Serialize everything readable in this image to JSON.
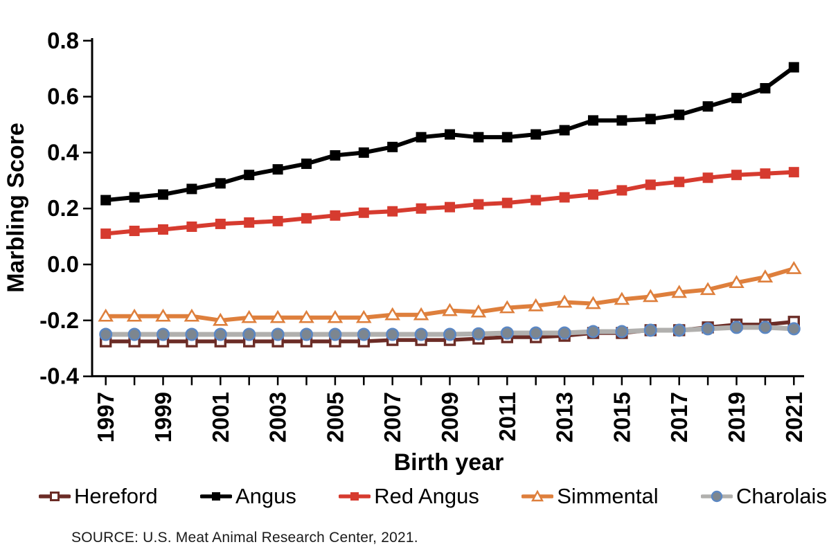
{
  "figure": {
    "y_axis_label": "Marbling Score",
    "x_axis_label": "Birth year",
    "source": "SOURCE: U.S. Meat Animal Research Center, 2021."
  },
  "chart_data": {
    "type": "line",
    "title": "",
    "xlabel": "Birth year",
    "ylabel": "Marbling Score",
    "x": [
      1997,
      1998,
      1999,
      2000,
      2001,
      2002,
      2003,
      2004,
      2005,
      2006,
      2007,
      2008,
      2009,
      2010,
      2011,
      2012,
      2013,
      2014,
      2015,
      2016,
      2017,
      2018,
      2019,
      2020,
      2021
    ],
    "x_tick_labels": [
      "1997",
      "1999",
      "2001",
      "2003",
      "2005",
      "2007",
      "2009",
      "2011",
      "2013",
      "2015",
      "2017",
      "2019",
      "2021"
    ],
    "y_tick_labels": [
      "0.8",
      "0.6",
      "0.4",
      "0.2",
      "0.0",
      "-0.2",
      "-0.4"
    ],
    "ylim": [
      -0.4,
      0.8
    ],
    "grid": false,
    "legend_position": "bottom",
    "series": [
      {
        "name": "Hereford",
        "color": "#6b2c26",
        "marker": "open-square",
        "line_width": 5.5,
        "values": [
          -0.275,
          -0.275,
          -0.275,
          -0.275,
          -0.275,
          -0.275,
          -0.275,
          -0.275,
          -0.275,
          -0.275,
          -0.27,
          -0.27,
          -0.27,
          -0.265,
          -0.26,
          -0.26,
          -0.255,
          -0.245,
          -0.245,
          -0.235,
          -0.235,
          -0.225,
          -0.215,
          -0.215,
          -0.205
        ]
      },
      {
        "name": "Angus",
        "color": "#000000",
        "marker": "filled-square",
        "line_width": 6,
        "values": [
          0.23,
          0.24,
          0.25,
          0.27,
          0.29,
          0.32,
          0.34,
          0.36,
          0.39,
          0.4,
          0.42,
          0.455,
          0.465,
          0.455,
          0.455,
          0.465,
          0.48,
          0.515,
          0.515,
          0.52,
          0.535,
          0.565,
          0.595,
          0.63,
          0.705
        ]
      },
      {
        "name": "Red Angus",
        "color": "#d63b2f",
        "marker": "filled-square",
        "line_width": 6,
        "values": [
          0.11,
          0.12,
          0.125,
          0.135,
          0.145,
          0.15,
          0.155,
          0.165,
          0.175,
          0.185,
          0.19,
          0.2,
          0.205,
          0.215,
          0.22,
          0.23,
          0.24,
          0.25,
          0.265,
          0.285,
          0.295,
          0.31,
          0.32,
          0.325,
          0.33
        ]
      },
      {
        "name": "Simmental",
        "color": "#de7f3c",
        "marker": "open-triangle",
        "line_width": 6,
        "values": [
          -0.185,
          -0.185,
          -0.185,
          -0.185,
          -0.2,
          -0.19,
          -0.19,
          -0.19,
          -0.19,
          -0.19,
          -0.18,
          -0.18,
          -0.165,
          -0.17,
          -0.155,
          -0.148,
          -0.135,
          -0.14,
          -0.125,
          -0.115,
          -0.1,
          -0.09,
          -0.065,
          -0.045,
          -0.015
        ]
      },
      {
        "name": "Charolais",
        "color": "#b1b0ae",
        "marker": "filled-circle",
        "marker_fill": "#7d868f",
        "marker_edge": "#5b87c3",
        "line_width": 7,
        "values": [
          -0.25,
          -0.25,
          -0.25,
          -0.25,
          -0.25,
          -0.25,
          -0.25,
          -0.25,
          -0.25,
          -0.25,
          -0.25,
          -0.25,
          -0.25,
          -0.248,
          -0.245,
          -0.245,
          -0.245,
          -0.24,
          -0.24,
          -0.235,
          -0.235,
          -0.23,
          -0.225,
          -0.225,
          -0.23
        ]
      }
    ]
  }
}
